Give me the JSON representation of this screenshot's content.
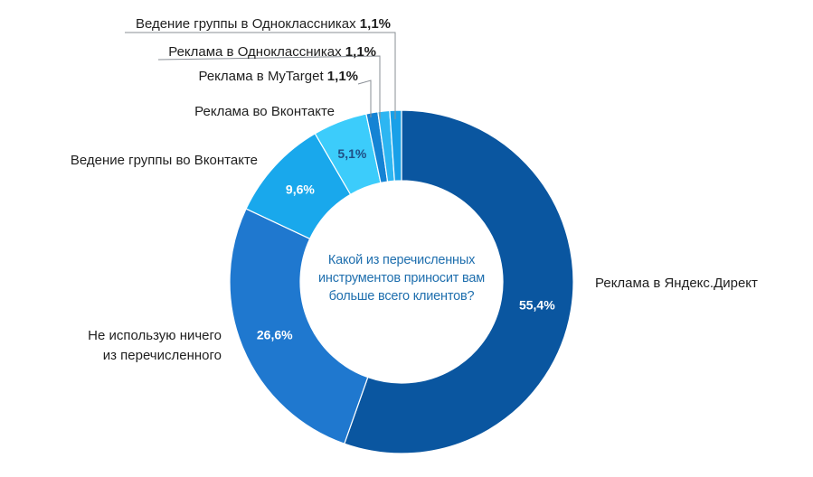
{
  "chart_data": {
    "type": "pie",
    "variant": "donut",
    "center_text": "Какой из перечисленных инструментов приносит вам больше всего клиентов?",
    "slices": [
      {
        "label": "Реклама в Яндекс.Директ",
        "value": 55.4,
        "value_text": "55,4%",
        "color": "#0a56a0",
        "value_color": "#ffffff"
      },
      {
        "label": "Не использую ничего из перечисленного",
        "label_lines": [
          "Не использую ничего",
          "из перечисленного"
        ],
        "value": 26.6,
        "value_text": "26,6%",
        "color": "#1f78cf",
        "value_color": "#ffffff"
      },
      {
        "label": "Ведение группы во Вконтакте",
        "value": 9.6,
        "value_text": "9,6%",
        "color": "#19a8ec",
        "value_color": "#ffffff"
      },
      {
        "label": "Реклама во Вконтакте",
        "value": 5.1,
        "value_text": "5,1%",
        "color": "#3cccfb",
        "value_color": "#1f4f86"
      },
      {
        "label": "Реклама в MyTarget",
        "value": 1.1,
        "value_text": "1,1%",
        "color": "#1583d4",
        "value_color": "#1f1f1f"
      },
      {
        "label": "Реклама в Одноклассниках",
        "value": 1.1,
        "value_text": "1,1%",
        "color": "#2db6f2",
        "value_color": "#1f1f1f"
      },
      {
        "label": "Ведение группы в Одноклассниках",
        "value": 1.1,
        "value_text": "1,1%",
        "color": "#19a0e8",
        "value_color": "#1f1f1f"
      }
    ]
  }
}
